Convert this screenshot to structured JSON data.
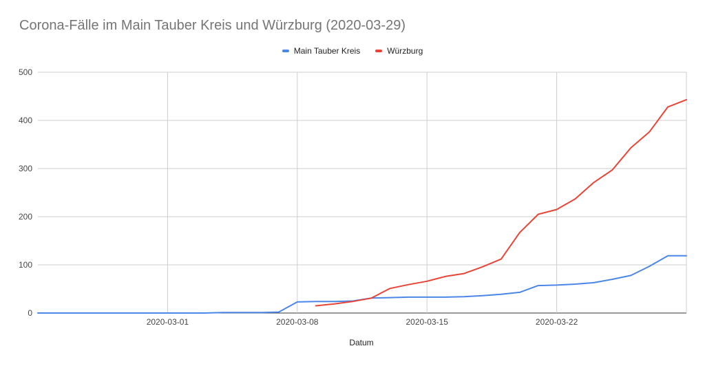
{
  "chart_data": {
    "type": "line",
    "title": "Corona-Fälle im Main Tauber Kreis und Würzburg (2020-03-29)",
    "xlabel": "Datum",
    "ylabel": "",
    "x_start": "2020-02-23",
    "x_end": "2020-03-29",
    "x_ticks": [
      "2020-03-01",
      "2020-03-08",
      "2020-03-15",
      "2020-03-22"
    ],
    "ylim": [
      0,
      500
    ],
    "y_ticks": [
      0,
      100,
      200,
      300,
      400,
      500
    ],
    "grid": true,
    "legend_position": "top-center",
    "series": [
      {
        "name": "Main Tauber Kreis",
        "color": "#4a86e8",
        "points": [
          [
            "2020-02-23",
            0
          ],
          [
            "2020-03-01",
            0
          ],
          [
            "2020-03-03",
            0
          ],
          [
            "2020-03-04",
            1
          ],
          [
            "2020-03-06",
            1
          ],
          [
            "2020-03-07",
            2
          ],
          [
            "2020-03-08",
            23
          ],
          [
            "2020-03-09",
            24
          ],
          [
            "2020-03-10",
            24
          ],
          [
            "2020-03-11",
            25
          ],
          [
            "2020-03-12",
            31
          ],
          [
            "2020-03-13",
            32
          ],
          [
            "2020-03-14",
            33
          ],
          [
            "2020-03-15",
            33
          ],
          [
            "2020-03-16",
            33
          ],
          [
            "2020-03-17",
            34
          ],
          [
            "2020-03-18",
            36
          ],
          [
            "2020-03-19",
            39
          ],
          [
            "2020-03-20",
            43
          ],
          [
            "2020-03-21",
            57
          ],
          [
            "2020-03-22",
            58
          ],
          [
            "2020-03-23",
            60
          ],
          [
            "2020-03-24",
            63
          ],
          [
            "2020-03-25",
            70
          ],
          [
            "2020-03-26",
            78
          ],
          [
            "2020-03-27",
            97
          ],
          [
            "2020-03-28",
            119
          ],
          [
            "2020-03-29",
            119
          ]
        ]
      },
      {
        "name": "Würzburg",
        "color": "#ea4335",
        "points": [
          [
            "2020-03-09",
            15
          ],
          [
            "2020-03-10",
            19
          ],
          [
            "2020-03-11",
            24
          ],
          [
            "2020-03-12",
            31
          ],
          [
            "2020-03-13",
            51
          ],
          [
            "2020-03-14",
            59
          ],
          [
            "2020-03-15",
            66
          ],
          [
            "2020-03-16",
            76
          ],
          [
            "2020-03-17",
            82
          ],
          [
            "2020-03-18",
            96
          ],
          [
            "2020-03-19",
            112
          ],
          [
            "2020-03-20",
            167
          ],
          [
            "2020-03-21",
            205
          ],
          [
            "2020-03-22",
            215
          ],
          [
            "2020-03-23",
            237
          ],
          [
            "2020-03-24",
            271
          ],
          [
            "2020-03-25",
            297
          ],
          [
            "2020-03-26",
            343
          ],
          [
            "2020-03-27",
            376
          ],
          [
            "2020-03-28",
            428
          ],
          [
            "2020-03-29",
            443
          ]
        ]
      }
    ]
  }
}
